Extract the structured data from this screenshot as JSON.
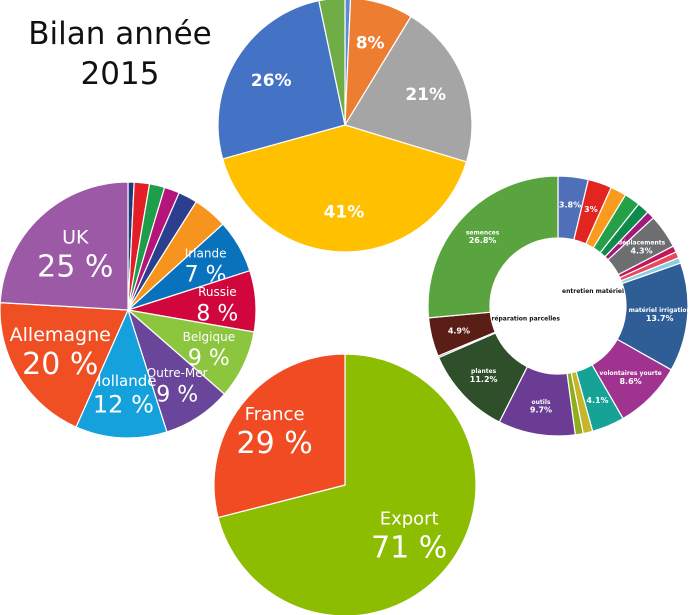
{
  "title": {
    "line1": "Bilan année",
    "line2": "2015"
  },
  "chart_data": [
    {
      "type": "pie",
      "title": "",
      "slices": [
        {
          "label": "",
          "value": 0.7,
          "color": "#5b8bd3",
          "text": ""
        },
        {
          "label": "",
          "value": 8,
          "color": "#ed7d31",
          "text": "8%"
        },
        {
          "label": "",
          "value": 21,
          "color": "#a5a5a5",
          "text": "21%"
        },
        {
          "label": "",
          "value": 41,
          "color": "#ffc000",
          "text": "41%"
        },
        {
          "label": "",
          "value": 26,
          "color": "#4472c4",
          "text": "26%"
        },
        {
          "label": "",
          "value": 3.3,
          "color": "#70ad47",
          "text": ""
        }
      ]
    },
    {
      "type": "pie",
      "title": "",
      "slices": [
        {
          "label": "",
          "value": 0.8,
          "color": "#1f3a7a",
          "text": ""
        },
        {
          "label": "",
          "value": 2,
          "color": "#e41e26",
          "text": ""
        },
        {
          "label": "",
          "value": 2,
          "color": "#1e9e4a",
          "text": ""
        },
        {
          "label": "",
          "value": 2,
          "color": "#b5157a",
          "text": ""
        },
        {
          "label": "",
          "value": 2.5,
          "color": "#2b3f8e",
          "text": ""
        },
        {
          "label": "",
          "value": 4.5,
          "color": "#f7941d",
          "text": ""
        },
        {
          "label": "Irlande",
          "value": 7,
          "color": "#0872bc",
          "text": "7 %"
        },
        {
          "label": "Russie",
          "value": 8,
          "color": "#d1063d",
          "text": "8 %"
        },
        {
          "label": "Belgique",
          "value": 9,
          "color": "#8cc63f",
          "text": "9 %"
        },
        {
          "label": "Outre-Mer",
          "value": 9,
          "color": "#6a469b",
          "text": "9 %"
        },
        {
          "label": "Hollande",
          "value": 12,
          "color": "#15a2dc",
          "text": "12 %"
        },
        {
          "label": "Allemagne",
          "value": 20,
          "color": "#f04e23",
          "text": "20 %"
        },
        {
          "label": "UK",
          "value": 25,
          "color": "#9b59a6",
          "text": "25 %"
        }
      ]
    },
    {
      "type": "pie",
      "title": "",
      "slices": [
        {
          "label": "Export",
          "value": 71,
          "color": "#8cbd00",
          "text": "71 %"
        },
        {
          "label": "France",
          "value": 29,
          "color": "#f04b23",
          "text": "29 %"
        }
      ]
    },
    {
      "type": "pie",
      "title": "",
      "donut": true,
      "slices": [
        {
          "label": "",
          "value": 3.8,
          "color": "#4f6fb8",
          "text": "3.8%"
        },
        {
          "label": "",
          "value": 3,
          "color": "#e32522",
          "text": "3%"
        },
        {
          "label": "",
          "value": 2,
          "color": "#f89b1e",
          "text": ""
        },
        {
          "label": "",
          "value": 2,
          "color": "#26a048",
          "text": ""
        },
        {
          "label": "",
          "value": 1.5,
          "color": "#0e8a4a",
          "text": ""
        },
        {
          "label": "",
          "value": 1,
          "color": "#a01a7d",
          "text": ""
        },
        {
          "label": "déplacements",
          "value": 4.3,
          "color": "#6d6e70",
          "text": "4.3%"
        },
        {
          "label": "",
          "value": 0.8,
          "color": "#c2185b",
          "text": ""
        },
        {
          "label": "",
          "value": 0.8,
          "color": "#e8495b",
          "text": ""
        },
        {
          "label": "entretien matériel",
          "value": 0.7,
          "color": "#88cfe6",
          "text": ""
        },
        {
          "label": "matériel irrigation",
          "value": 13.7,
          "color": "#2f5d96",
          "text": "13.7%"
        },
        {
          "label": "volontaires yourte",
          "value": 8.6,
          "color": "#a0338f",
          "text": "8.6%"
        },
        {
          "label": "",
          "value": 4.1,
          "color": "#16a295",
          "text": "4.1%"
        },
        {
          "label": "",
          "value": 1.2,
          "color": "#c5b52b",
          "text": ""
        },
        {
          "label": "",
          "value": 1,
          "color": "#8fae1b",
          "text": ""
        },
        {
          "label": "outils",
          "value": 9.7,
          "color": "#6a3c94",
          "text": "9.7%"
        },
        {
          "label": "plantes",
          "value": 11.2,
          "color": "#2f4f2a",
          "text": "11.2%"
        },
        {
          "label": "préparation parcelles",
          "value": 0.2,
          "color": "#3a2a1c",
          "text": ""
        },
        {
          "label": "",
          "value": 4.9,
          "color": "#5b1e16",
          "text": "4.9%"
        },
        {
          "label": "semences",
          "value": 26.8,
          "color": "#5aa43f",
          "text": "26.8%"
        }
      ]
    }
  ]
}
